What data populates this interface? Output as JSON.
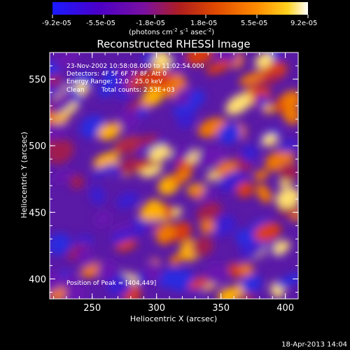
{
  "colorbar": {
    "ticks": [
      "-9.2e-05",
      "-5.5e-05",
      "-1.8e-05",
      "1.8e-05",
      "5.5e-05",
      "9.2e-05"
    ],
    "unit_main": "(photons cm",
    "unit_sup1": "-2",
    "unit_mid": " s",
    "unit_sup2": "-1",
    "unit_mid2": " asec",
    "unit_sup3": "-2",
    "unit_end": ")",
    "colors": [
      "#1a1aff",
      "#4b00c8",
      "#7a10a0",
      "#b01e1e",
      "#e04a00",
      "#ff8c00",
      "#ffd21e",
      "#ffffff"
    ]
  },
  "annotations": {
    "time": "23-Nov-2002 10:58:08.000 to 11:02:54.000",
    "detectors": "Detectors: 4F 5F 6F 7F 8F, Att 0",
    "energy": "Energy Range: 12.0 - 25.0 keV",
    "clean_label": "Clean",
    "counts": "Total counts: 2.53E+03",
    "peak": "Position of Peak = [404,449]"
  },
  "footer": {
    "date": "18-Apr-2013 14:04"
  },
  "chart_data": {
    "type": "heatmap",
    "title": "Reconstructed RHESSI Image",
    "xlabel": "Heliocentric X (arcsec)",
    "ylabel": "Heliocentric Y (arcsec)",
    "xlim": [
      217,
      410
    ],
    "ylim": [
      385,
      570
    ],
    "x_ticks": [
      250,
      300,
      350,
      400
    ],
    "y_ticks": [
      400,
      450,
      500,
      550
    ],
    "value_range": [
      -9.2e-05,
      9.2e-05
    ],
    "peak_position": [
      404,
      449
    ]
  }
}
